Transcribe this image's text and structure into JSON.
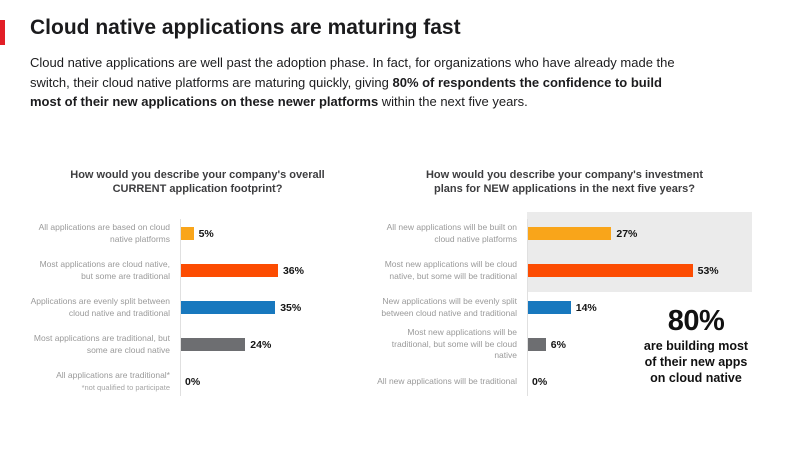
{
  "header": {
    "title": "Cloud native applications are maturing fast",
    "intro_before": "Cloud native applications are well past the adoption phase. In fact, for organizations who have already made the switch, their cloud native platforms are maturing quickly, giving ",
    "intro_bold": "80% of respondents the confidence to build most of their new applications on these newer platforms",
    "intro_after": " within the next five years."
  },
  "colors": {
    "accent_red": "#E21E26",
    "amber": "#F9A51A",
    "orange": "#FC4C02",
    "blue": "#1878BE",
    "gray": "#6D6E71",
    "highlight_band": "#EBEBEB",
    "label_gray": "#9A9A9A"
  },
  "chart_data": [
    {
      "type": "bar",
      "orientation": "horizontal",
      "title": "How would you describe your company's overall CURRENT application footprint?",
      "categories": [
        "All applications are based on cloud native platforms",
        "Most applications are cloud native, but some are traditional",
        "Applications are evenly split between cloud native and traditional",
        "Most applications are traditional, but some are cloud native",
        "All applications are traditional*"
      ],
      "values": [
        5,
        36,
        35,
        24,
        0
      ],
      "value_labels": [
        "5%",
        "36%",
        "35%",
        "24%",
        "0%"
      ],
      "bar_colors": [
        "#F9A51A",
        "#FC4C02",
        "#1878BE",
        "#6D6E71",
        "#6D6E71"
      ],
      "footnote": "*not qualified to participate",
      "grid": false,
      "legend": false
    },
    {
      "type": "bar",
      "orientation": "horizontal",
      "title": "How would you describe your company's investment plans for NEW applications in the next five years?",
      "categories": [
        "All new applications will be built on cloud native platforms",
        "Most new applications will be cloud native, but some will be traditional",
        "New applications will be evenly split between cloud native and traditional",
        "Most new applications will be traditional, but some will be cloud native",
        "All new applications will be traditional"
      ],
      "values": [
        27,
        53,
        14,
        6,
        0
      ],
      "value_labels": [
        "27%",
        "53%",
        "14%",
        "6%",
        "0%"
      ],
      "bar_colors": [
        "#F9A51A",
        "#FC4C02",
        "#1878BE",
        "#6D6E71",
        "#6D6E71"
      ],
      "highlight_band_rows": [
        0,
        1
      ],
      "callout": {
        "big": "80%",
        "text": "are building most of their new apps on cloud native"
      },
      "grid": false,
      "legend": false
    }
  ]
}
